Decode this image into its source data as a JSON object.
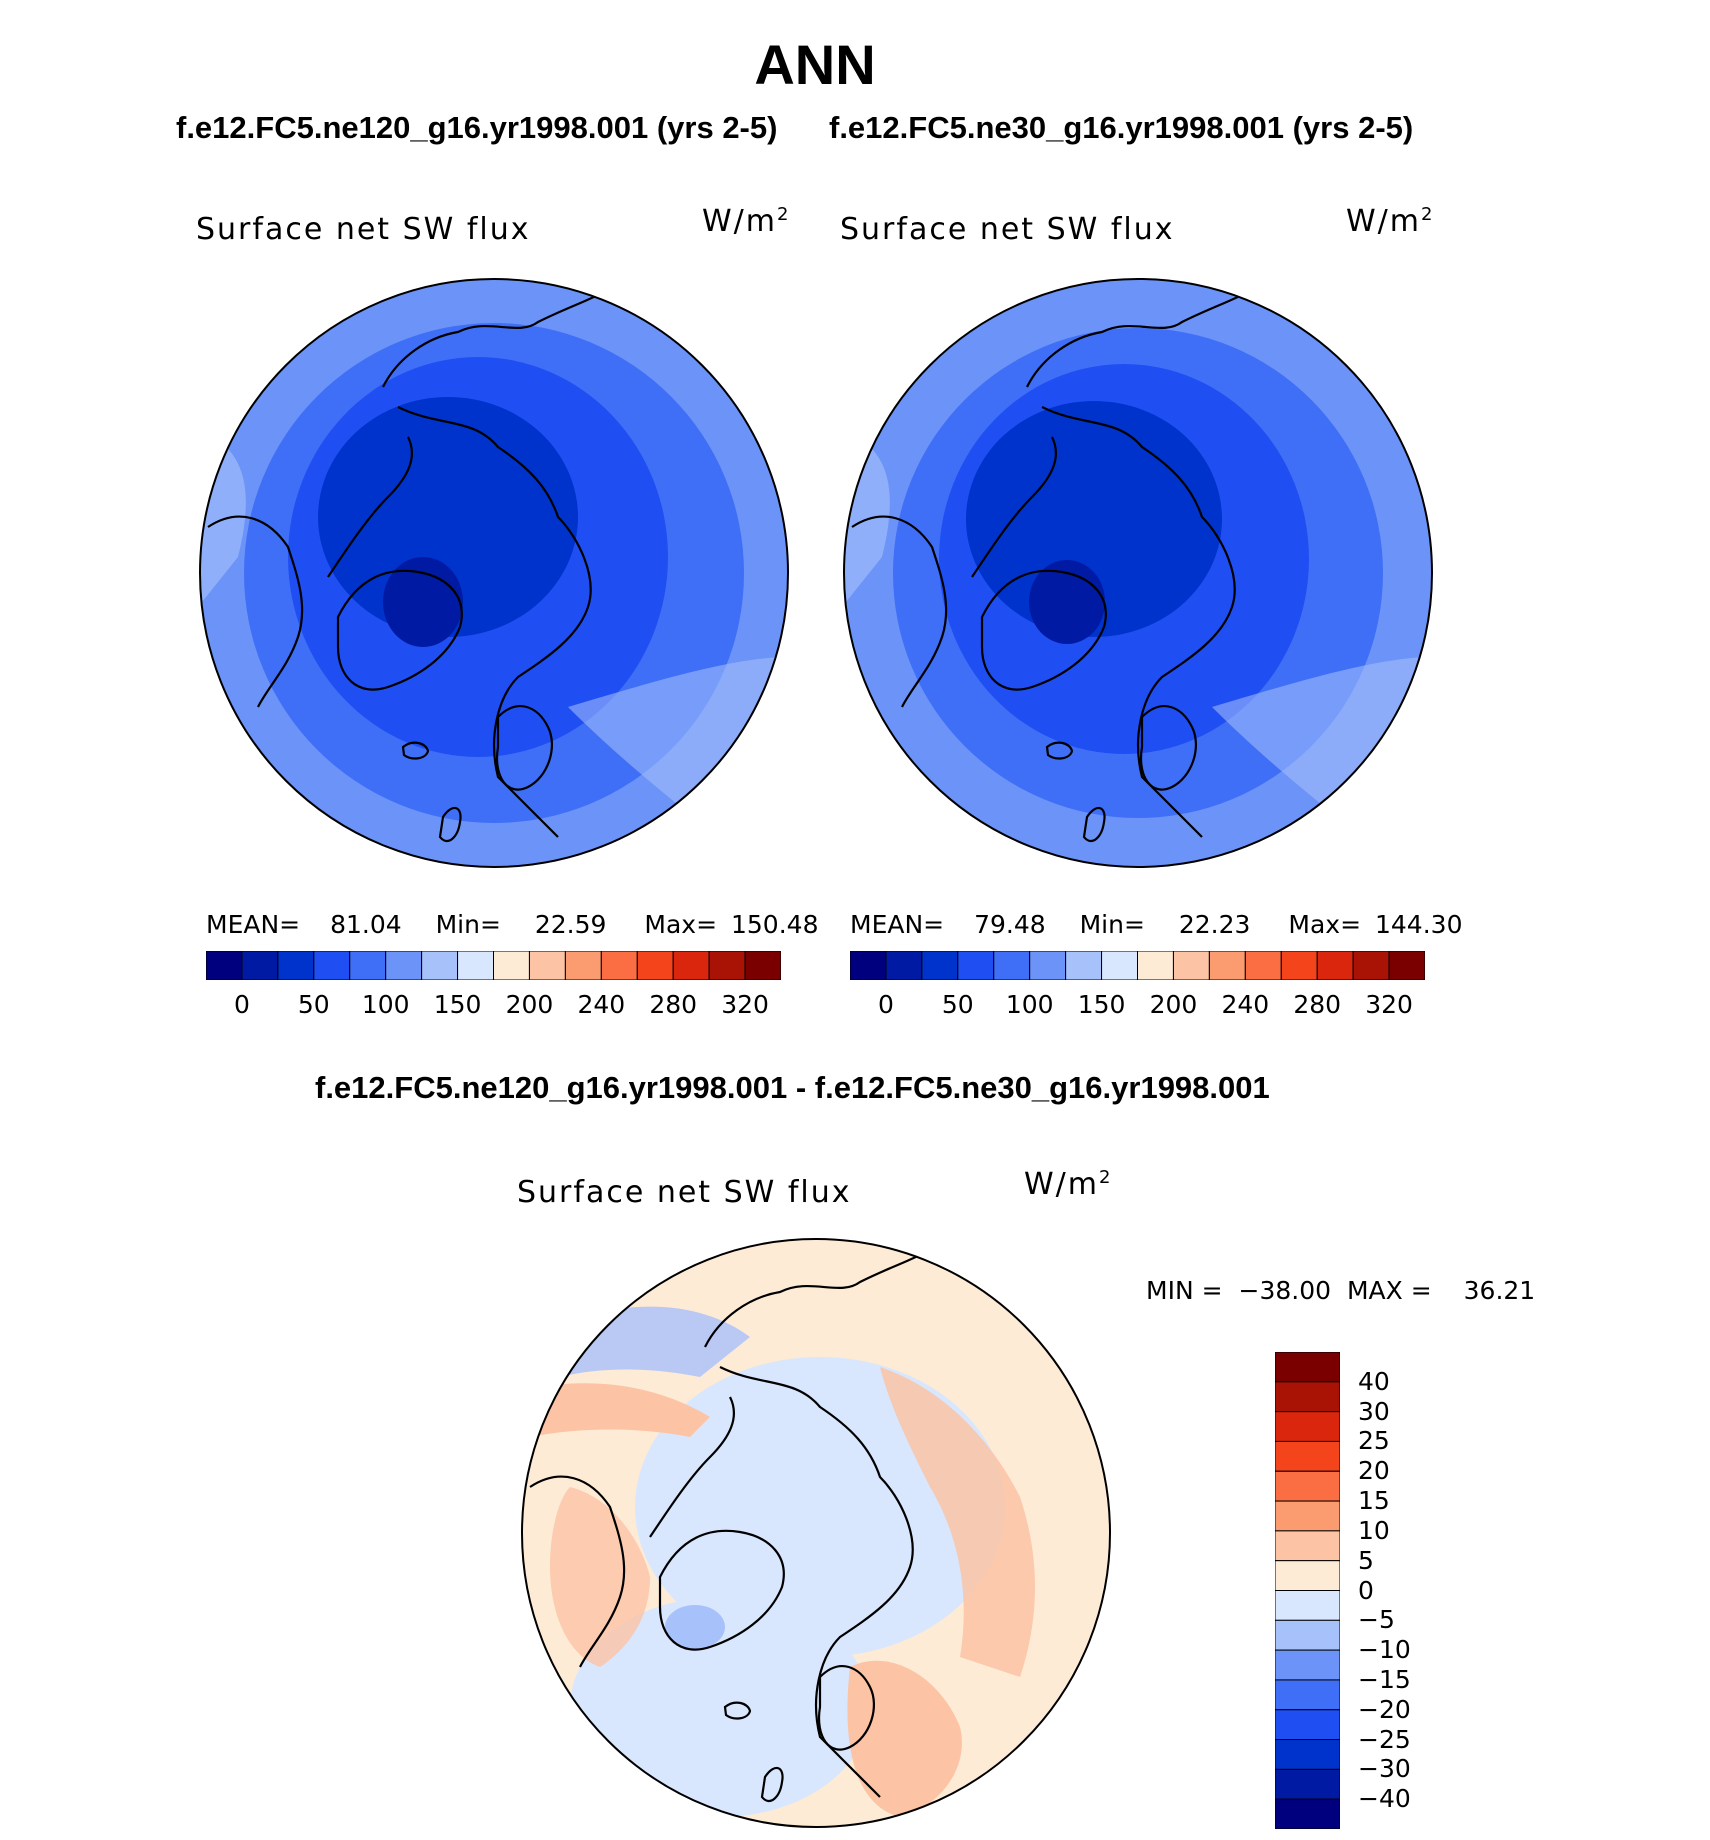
{
  "figure": {
    "title": "ANN",
    "case_titles": {
      "left": "f.e12.FC5.ne120_g16.yr1998.001 (yrs 2-5)",
      "right": "f.e12.FC5.ne30_g16.yr1998.001 (yrs 2-5)",
      "diff": "f.e12.FC5.ne120_g16.yr1998.001 - f.e12.FC5.ne30_g16.yr1998.001"
    }
  },
  "panels": [
    {
      "label": "Surface net SW flux",
      "units": "W/m",
      "units_exp": "2",
      "stats": {
        "mean_label": "MEAN=",
        "mean": "81.04",
        "min_label": "Min=",
        "min": "22.59",
        "max_label": "Max=",
        "max": "150.48"
      }
    },
    {
      "label": "Surface net SW flux",
      "units": "W/m",
      "units_exp": "2",
      "stats": {
        "mean_label": "MEAN=",
        "mean": "79.48",
        "min_label": "Min=",
        "min": "22.23",
        "max_label": "Max=",
        "max": "144.30"
      }
    }
  ],
  "diff_panel": {
    "label": "Surface net SW flux",
    "units": "W/m",
    "units_exp": "2",
    "minmax": {
      "min_label": "MIN =",
      "min": "−38.00",
      "max_label": "MAX =",
      "max": "36.21"
    }
  },
  "colorbars": {
    "abs": {
      "colors": [
        "#00007f",
        "#001aa3",
        "#0033cc",
        "#1f4ff2",
        "#3f6ff6",
        "#6b93f8",
        "#a7c1fb",
        "#d8e7fd",
        "#fdebd6",
        "#fcc3a5",
        "#fb9b70",
        "#fb6d42",
        "#f4441c",
        "#d9260c",
        "#a81306",
        "#7a0000"
      ],
      "ticks": [
        "0",
        "50",
        "100",
        "150",
        "200",
        "240",
        "280",
        "320"
      ]
    },
    "diff": {
      "colors": [
        "#00007f",
        "#001aa3",
        "#0033cc",
        "#1f4ff2",
        "#3f6ff6",
        "#6b93f8",
        "#a7c1fb",
        "#d8e7fd",
        "#fdebd6",
        "#fcc3a5",
        "#fb9b70",
        "#fb6d42",
        "#f4441c",
        "#d9260c",
        "#a81306",
        "#7a0000"
      ],
      "ticks": [
        "40",
        "30",
        "25",
        "20",
        "15",
        "10",
        "5",
        "0",
        "−5",
        "−10",
        "−15",
        "−20",
        "−25",
        "−30",
        "−40"
      ]
    }
  }
}
